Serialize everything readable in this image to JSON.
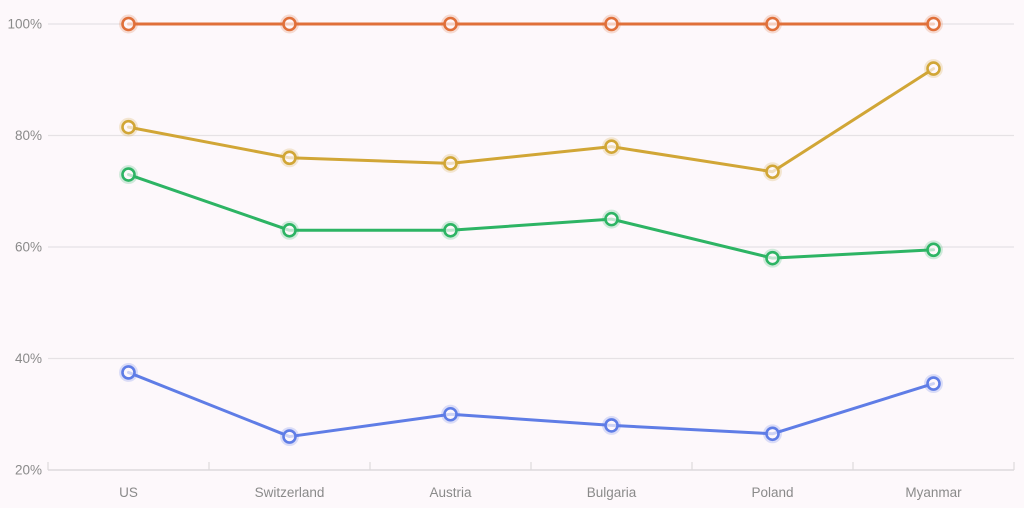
{
  "chart": {
    "background_color": "#fdf8fb",
    "grid_color": "#e6e2e5",
    "axis_color": "#ddd9dc",
    "label_color": "#8a8a8a"
  },
  "chart_data": {
    "type": "line",
    "title": "",
    "xlabel": "",
    "ylabel": "",
    "categories": [
      "US",
      "Switzerland",
      "Austria",
      "Bulgaria",
      "Poland",
      "Myanmar"
    ],
    "series": [
      {
        "name": "orange-series",
        "color": "#e0703a",
        "values": [
          100,
          100,
          100,
          100,
          100,
          100
        ]
      },
      {
        "name": "gold-series",
        "color": "#d1a636",
        "values": [
          81.5,
          76,
          75,
          78,
          73.5,
          92
        ]
      },
      {
        "name": "green-series",
        "color": "#2db464",
        "values": [
          73,
          63,
          63,
          65,
          58,
          59.5
        ]
      },
      {
        "name": "blue-series",
        "color": "#5f7de6",
        "values": [
          37.5,
          26,
          30,
          28,
          26.5,
          35.5
        ]
      }
    ],
    "y_ticks": [
      {
        "label": "100%",
        "value": 100
      },
      {
        "label": "80%",
        "value": 80
      },
      {
        "label": "60%",
        "value": 60
      },
      {
        "label": "40%",
        "value": 40
      },
      {
        "label": "20%",
        "value": 20
      }
    ],
    "ylim": [
      20,
      100
    ],
    "grid": true,
    "legend": false,
    "marker": "open-circle"
  }
}
